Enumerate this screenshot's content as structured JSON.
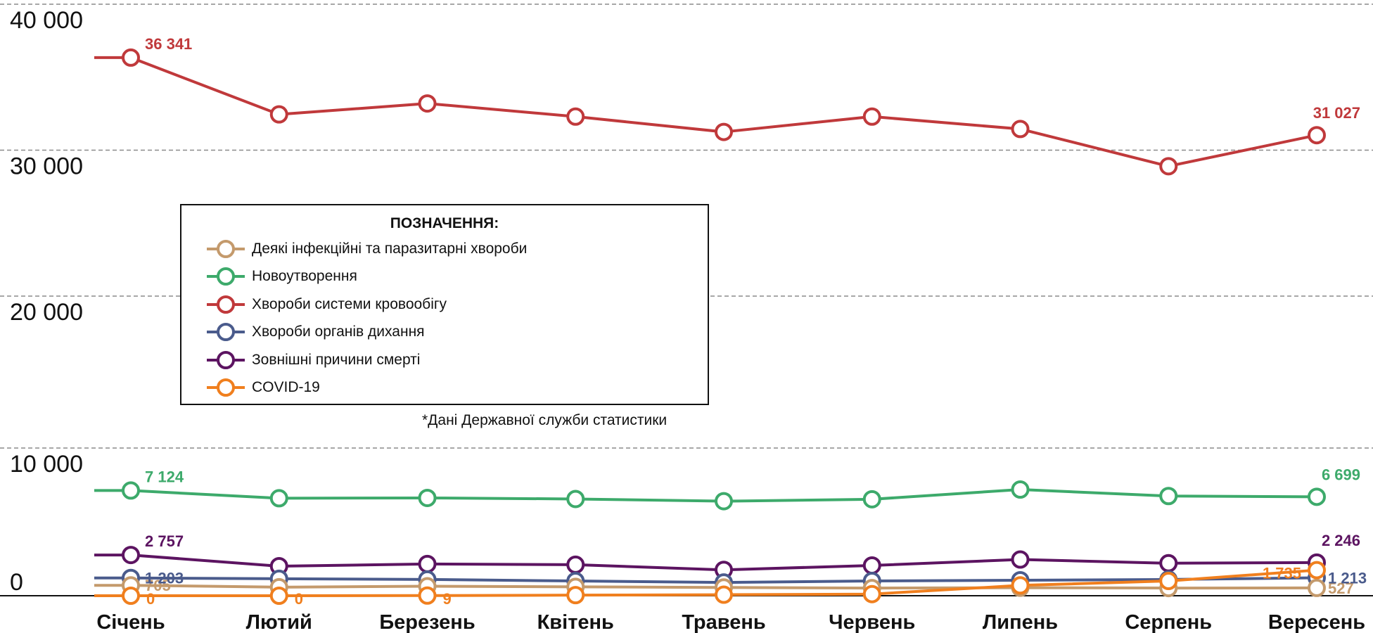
{
  "chart_data": {
    "type": "line",
    "categories": [
      "Січень",
      "Лютий",
      "Березень",
      "Квітень",
      "Травень",
      "Червень",
      "Липень",
      "Серпень",
      "Вересень"
    ],
    "y_ticks": [
      "40 000",
      "30 000",
      "20 000",
      "10 000",
      "0"
    ],
    "legend_title": "ПОЗНАЧЕННЯ:",
    "note": "*Дані Державної служби статистики",
    "series": [
      {
        "name": "Деякі інфекційні та паразитарні хвороби",
        "color": "#c49a6c",
        "values": [
          705,
          580,
          640,
          600,
          560,
          520,
          540,
          520,
          527
        ],
        "labels": [
          {
            "index": 0,
            "text": "705"
          },
          {
            "index": 8,
            "text": "527"
          }
        ]
      },
      {
        "name": "Новоутворення",
        "color": "#3daa6b",
        "values": [
          7124,
          6600,
          6620,
          6550,
          6400,
          6530,
          7190,
          6750,
          6699
        ],
        "labels": [
          {
            "index": 0,
            "text": "7 124"
          },
          {
            "index": 8,
            "text": "6 699"
          }
        ]
      },
      {
        "name": "Хвороби системи кровообігу",
        "color": "#c0393b",
        "values": [
          36341,
          32450,
          33200,
          32300,
          31250,
          32300,
          31450,
          28900,
          31027
        ],
        "labels": [
          {
            "index": 0,
            "text": "36 341"
          },
          {
            "index": 8,
            "text": "31 027"
          }
        ]
      },
      {
        "name": "Хвороби органів дихання",
        "color": "#4a5b8c",
        "values": [
          1203,
          1150,
          1100,
          1000,
          900,
          1000,
          1050,
          1100,
          1213
        ],
        "labels": [
          {
            "index": 0,
            "text": "1 203"
          },
          {
            "index": 8,
            "text": "1 213"
          }
        ]
      },
      {
        "name": "Зовнішні причини смерті",
        "color": "#5c1461",
        "values": [
          2757,
          2000,
          2150,
          2100,
          1750,
          2050,
          2450,
          2200,
          2246
        ],
        "labels": [
          {
            "index": 0,
            "text": "2 757"
          },
          {
            "index": 8,
            "text": "2 246"
          }
        ]
      },
      {
        "name": "COVID-19",
        "color": "#f07f1e",
        "values": [
          0,
          0,
          9,
          40,
          70,
          110,
          700,
          1000,
          1735
        ],
        "labels": [
          {
            "index": 0,
            "text": "0"
          },
          {
            "index": 1,
            "text": "0"
          },
          {
            "index": 2,
            "text": "9"
          },
          {
            "index": 8,
            "text": "1 735"
          }
        ]
      }
    ]
  }
}
